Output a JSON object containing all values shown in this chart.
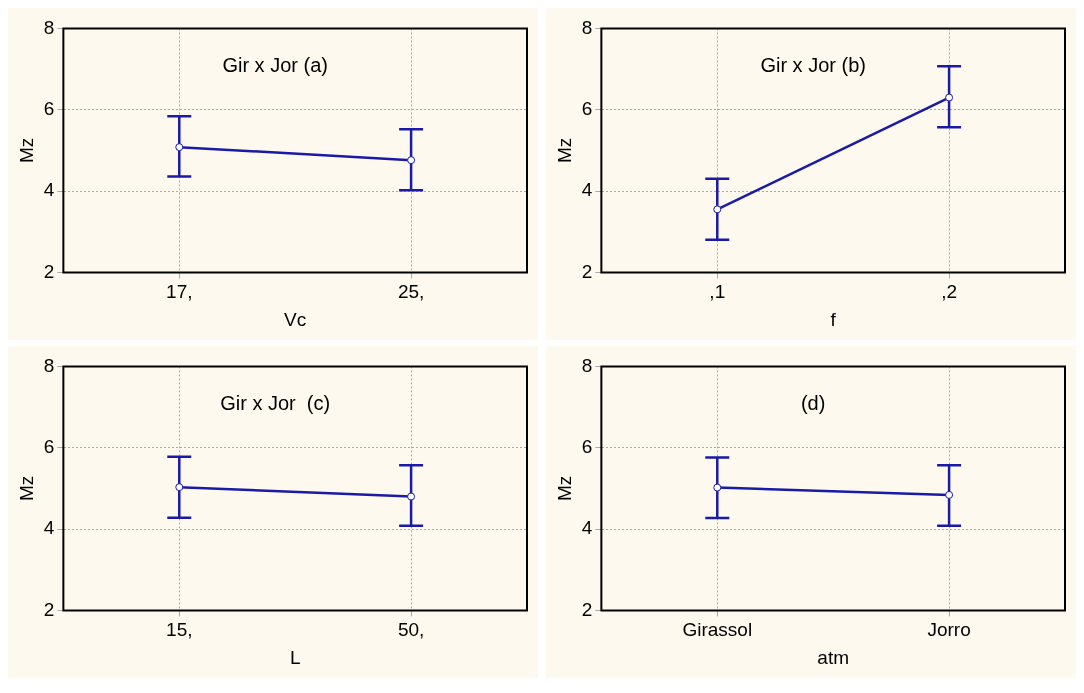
{
  "chart_data": [
    {
      "type": "line",
      "annotations": [
        "Gir x Jor (a)"
      ],
      "xlabel": "Vc",
      "ylabel": "Mz",
      "x": [
        17,
        25
      ],
      "xlim": [
        13,
        29
      ],
      "xticks": [
        {
          "value": 17,
          "label": "17,"
        },
        {
          "value": 25,
          "label": "25,"
        }
      ],
      "values": [
        5.08,
        4.76
      ],
      "errors": [
        [
          4.36,
          5.84
        ],
        [
          4.02,
          5.52
        ]
      ],
      "color": "#1a1aa8",
      "ylim": [
        2,
        8
      ],
      "yticks": [
        2,
        4,
        6,
        8
      ],
      "grid": true,
      "marker": "circle"
    },
    {
      "type": "line",
      "annotations": [
        "Gir x Jor (b)"
      ],
      "xlabel": "f",
      "ylabel": "Mz",
      "categories": [
        ",1",
        ",2"
      ],
      "values": [
        3.55,
        6.3
      ],
      "errors": [
        [
          2.8,
          4.3
        ],
        [
          5.57,
          7.07
        ]
      ],
      "color": "#1a1aa8",
      "ylim": [
        2,
        8
      ],
      "yticks": [
        2,
        4,
        6,
        8
      ],
      "grid": true,
      "marker": "circle"
    },
    {
      "type": "line",
      "annotations": [
        "Gir x Jor  (c)"
      ],
      "xlabel": "L",
      "ylabel": "Mz",
      "x": [
        15,
        50
      ],
      "xlim": [
        -2.5,
        67.5
      ],
      "xticks": [
        {
          "value": 15,
          "label": "15,"
        },
        {
          "value": 50,
          "label": "50,"
        }
      ],
      "values": [
        5.03,
        4.8
      ],
      "errors": [
        [
          4.28,
          5.78
        ],
        [
          4.08,
          5.57
        ]
      ],
      "color": "#1a1aa8",
      "ylim": [
        2,
        8
      ],
      "yticks": [
        2,
        4,
        6,
        8
      ],
      "grid": true,
      "marker": "circle"
    },
    {
      "type": "line",
      "annotations": [
        "(d)"
      ],
      "xlabel": "atm",
      "ylabel": "Mz",
      "categories": [
        "Girassol",
        "Jorro"
      ],
      "values": [
        5.02,
        4.84
      ],
      "errors": [
        [
          4.27,
          5.76
        ],
        [
          4.08,
          5.57
        ]
      ],
      "color": "#1a1aa8",
      "ylim": [
        2,
        8
      ],
      "yticks": [
        2,
        4,
        6,
        8
      ],
      "grid": true,
      "marker": "circle"
    }
  ]
}
